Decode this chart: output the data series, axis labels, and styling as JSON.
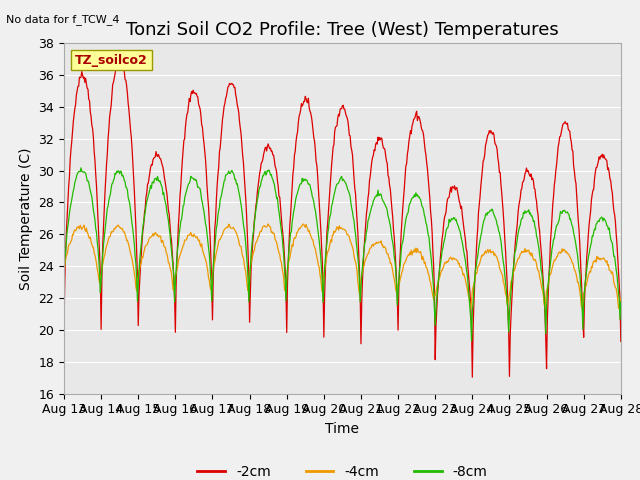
{
  "title": "Tonzi Soil CO2 Profile: Tree (West) Temperatures",
  "xlabel": "Time",
  "ylabel": "Soil Temperature (C)",
  "ylim": [
    16,
    38
  ],
  "xlim": [
    0,
    15
  ],
  "no_data_text": "No data for f_TCW_4",
  "legend_box_text": "TZ_soilco2",
  "x_tick_labels": [
    "Aug 13",
    "Aug 14",
    "Aug 15",
    "Aug 16",
    "Aug 17",
    "Aug 18",
    "Aug 19",
    "Aug 20",
    "Aug 21",
    "Aug 22",
    "Aug 23",
    "Aug 24",
    "Aug 25",
    "Aug 26",
    "Aug 27",
    "Aug 28"
  ],
  "line_colors": [
    "#dd0000",
    "#ee9900",
    "#22bb00"
  ],
  "line_labels": [
    "-2cm",
    "-4cm",
    "-8cm"
  ],
  "fig_bg_color": "#f0f0f0",
  "plot_bg_color": "#e8e8e8",
  "title_fontsize": 13,
  "axis_fontsize": 10,
  "tick_fontsize": 9,
  "grid_color": "#ffffff",
  "y_ticks": [
    16,
    18,
    20,
    22,
    24,
    26,
    28,
    30,
    32,
    34,
    36,
    38
  ]
}
